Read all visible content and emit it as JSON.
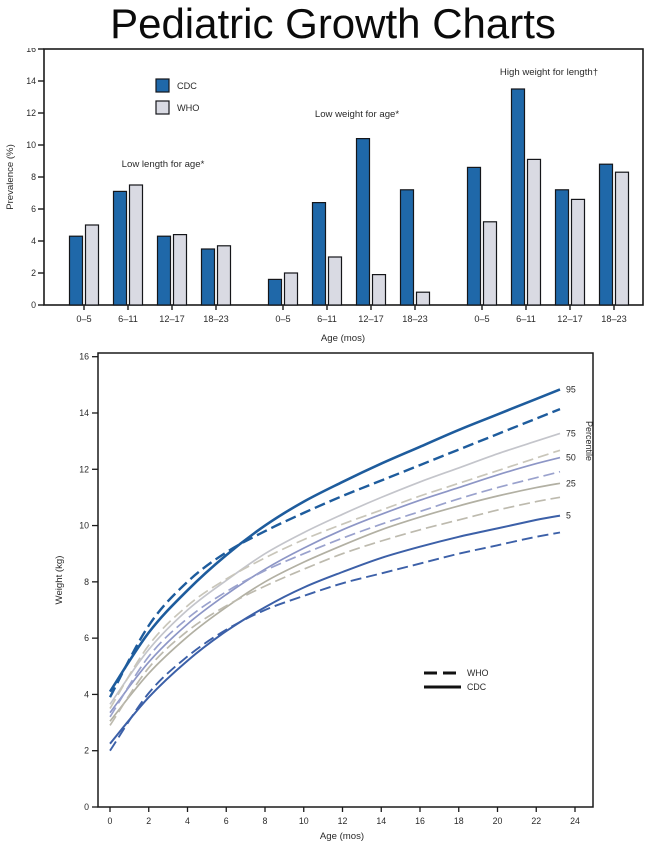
{
  "title": "Pediatric Growth Charts",
  "colors": {
    "cdc_bar": "#1f68a9",
    "who_bar": "#d9dae3",
    "bar_border": "#15161a",
    "axis": "#1a1a1a",
    "p95": "#1e5c9d",
    "p75": "#c4c5cb",
    "p50": "#8d96c6",
    "p25": "#b2b0a3",
    "p5": "#3c60a8"
  },
  "chart_data": [
    {
      "type": "bar",
      "ylabel": "Prevalence (%)",
      "xlabel": "Age (mos)",
      "ylim": [
        0,
        16
      ],
      "ytick_step": 2,
      "grid": false,
      "legend_position": "inside-top-left",
      "categories": [
        "0–5",
        "6–11",
        "12–17",
        "18–23"
      ],
      "legend": [
        {
          "name": "CDC",
          "color": "#1f68a9"
        },
        {
          "name": "WHO",
          "color": "#d9dae3"
        }
      ],
      "sections": [
        {
          "annotation": "Low length for age*",
          "series": [
            {
              "name": "CDC",
              "values": [
                4.3,
                7.1,
                4.3,
                3.5
              ]
            },
            {
              "name": "WHO",
              "values": [
                5.0,
                7.5,
                4.4,
                3.7
              ]
            }
          ]
        },
        {
          "annotation": "Low weight for age*",
          "series": [
            {
              "name": "CDC",
              "values": [
                1.6,
                6.4,
                10.4,
                7.2
              ]
            },
            {
              "name": "WHO",
              "values": [
                2.0,
                3.0,
                1.9,
                0.8
              ]
            }
          ]
        },
        {
          "annotation": "High weight for length†",
          "series": [
            {
              "name": "CDC",
              "values": [
                8.6,
                13.5,
                7.2,
                8.8
              ]
            },
            {
              "name": "WHO",
              "values": [
                5.2,
                9.1,
                6.6,
                8.3
              ]
            }
          ]
        }
      ]
    },
    {
      "type": "line",
      "ylabel": "Weight (kg)",
      "xlabel": "Age (mos)",
      "right_label": "Percentile",
      "ylim": [
        0,
        16
      ],
      "ytick_step": 2,
      "xlim": [
        0,
        24
      ],
      "xtick_step": 2,
      "grid": false,
      "legend_position": "inside-lower-right",
      "legend": [
        {
          "name": "WHO",
          "style": "dashed"
        },
        {
          "name": "CDC",
          "style": "solid"
        }
      ],
      "x": [
        0,
        2,
        4,
        6,
        8,
        10,
        12,
        14,
        16,
        18,
        20,
        22,
        24
      ],
      "series": [
        {
          "name": "CDC 95th percentile",
          "percentile": "95",
          "source": "CDC",
          "style": "solid",
          "color": "#1e5c9d",
          "width": 2.6,
          "values": [
            4.1,
            6.2,
            7.7,
            8.95,
            10.0,
            10.85,
            11.55,
            12.2,
            12.8,
            13.4,
            13.95,
            14.5,
            15.05
          ]
        },
        {
          "name": "WHO 95th percentile",
          "percentile": "95",
          "source": "WHO",
          "style": "dashed",
          "color": "#1e5c9d",
          "width": 2.4,
          "values": [
            3.9,
            6.45,
            8.0,
            9.05,
            9.8,
            10.45,
            11.05,
            11.6,
            12.15,
            12.7,
            13.25,
            13.8,
            14.35
          ]
        },
        {
          "name": "CDC 75th percentile",
          "percentile": "75",
          "source": "CDC",
          "style": "solid",
          "color": "#c4c5cb",
          "width": 1.7,
          "values": [
            3.65,
            5.6,
            7.0,
            8.05,
            9.0,
            9.75,
            10.4,
            11.0,
            11.55,
            12.05,
            12.55,
            13.0,
            13.45
          ]
        },
        {
          "name": "WHO 75th percentile",
          "percentile": "75",
          "source": "WHO",
          "style": "dashed",
          "color": "#c9c6ba",
          "width": 1.7,
          "values": [
            3.5,
            5.75,
            7.15,
            8.1,
            8.85,
            9.5,
            10.05,
            10.55,
            11.05,
            11.5,
            11.95,
            12.4,
            12.85
          ]
        },
        {
          "name": "CDC 50th percentile",
          "percentile": "50",
          "source": "CDC",
          "style": "solid",
          "color": "#8d96c6",
          "width": 1.7,
          "values": [
            3.35,
            5.15,
            6.5,
            7.55,
            8.45,
            9.2,
            9.85,
            10.4,
            10.9,
            11.35,
            11.8,
            12.2,
            12.55
          ]
        },
        {
          "name": "WHO 50th percentile",
          "percentile": "50",
          "source": "WHO",
          "style": "dashed",
          "color": "#9aa2cd",
          "width": 1.7,
          "values": [
            3.2,
            5.35,
            6.7,
            7.65,
            8.4,
            9.0,
            9.55,
            10.05,
            10.5,
            10.95,
            11.35,
            11.7,
            12.05
          ]
        },
        {
          "name": "CDC 25th percentile",
          "percentile": "25",
          "source": "CDC",
          "style": "solid",
          "color": "#b2b0a3",
          "width": 1.7,
          "values": [
            3.05,
            4.75,
            6.05,
            7.1,
            8.0,
            8.7,
            9.3,
            9.85,
            10.3,
            10.7,
            11.05,
            11.35,
            11.6
          ]
        },
        {
          "name": "WHO 25th percentile",
          "percentile": "25",
          "source": "WHO",
          "style": "dashed",
          "color": "#bdbaae",
          "width": 1.7,
          "values": [
            2.9,
            4.95,
            6.25,
            7.15,
            7.85,
            8.45,
            9.0,
            9.45,
            9.85,
            10.2,
            10.55,
            10.85,
            11.1
          ]
        },
        {
          "name": "CDC 5th percentile",
          "percentile": "5",
          "source": "CDC",
          "style": "solid",
          "color": "#3c60a8",
          "width": 2.0,
          "values": [
            2.25,
            3.9,
            5.2,
            6.25,
            7.1,
            7.8,
            8.35,
            8.85,
            9.25,
            9.6,
            9.9,
            10.2,
            10.45
          ]
        },
        {
          "name": "WHO 5th percentile",
          "percentile": "5",
          "source": "WHO",
          "style": "dashed",
          "color": "#3c60a8",
          "width": 1.9,
          "values": [
            2.0,
            4.05,
            5.35,
            6.3,
            7.0,
            7.5,
            7.95,
            8.3,
            8.65,
            9.0,
            9.3,
            9.6,
            9.85
          ]
        }
      ]
    }
  ]
}
